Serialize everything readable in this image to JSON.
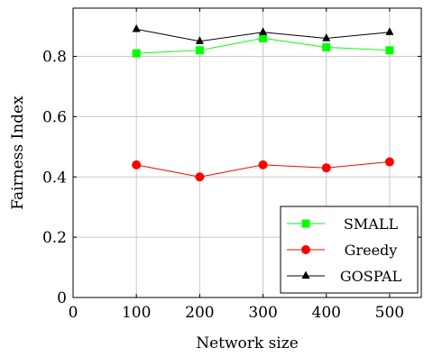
{
  "chart_data": {
    "type": "line",
    "title": "",
    "xlabel": "Network size",
    "ylabel": "Fairness Index",
    "xlim": [
      0,
      550
    ],
    "ylim": [
      0,
      0.96
    ],
    "xticks": [
      0,
      100,
      200,
      300,
      400,
      500
    ],
    "yticks": [
      0,
      0.2,
      0.4,
      0.6,
      0.8
    ],
    "xtick_labels": [
      "0",
      "100",
      "200",
      "300",
      "400",
      "500"
    ],
    "ytick_labels": [
      "0",
      "0.2",
      "0.4",
      "0.6",
      "0.8"
    ],
    "grid": true,
    "legend_position": "bottom-right",
    "x": [
      100,
      200,
      300,
      400,
      500
    ],
    "series": [
      {
        "name": "SMALL",
        "values": [
          0.81,
          0.82,
          0.86,
          0.83,
          0.82
        ],
        "color": "#00ff00",
        "marker": "square"
      },
      {
        "name": "Greedy",
        "values": [
          0.44,
          0.4,
          0.44,
          0.43,
          0.45
        ],
        "color": "#ff0000",
        "marker": "circle"
      },
      {
        "name": "GOSPAL",
        "values": [
          0.89,
          0.85,
          0.88,
          0.86,
          0.88
        ],
        "color": "#000000",
        "marker": "triangle"
      }
    ]
  }
}
